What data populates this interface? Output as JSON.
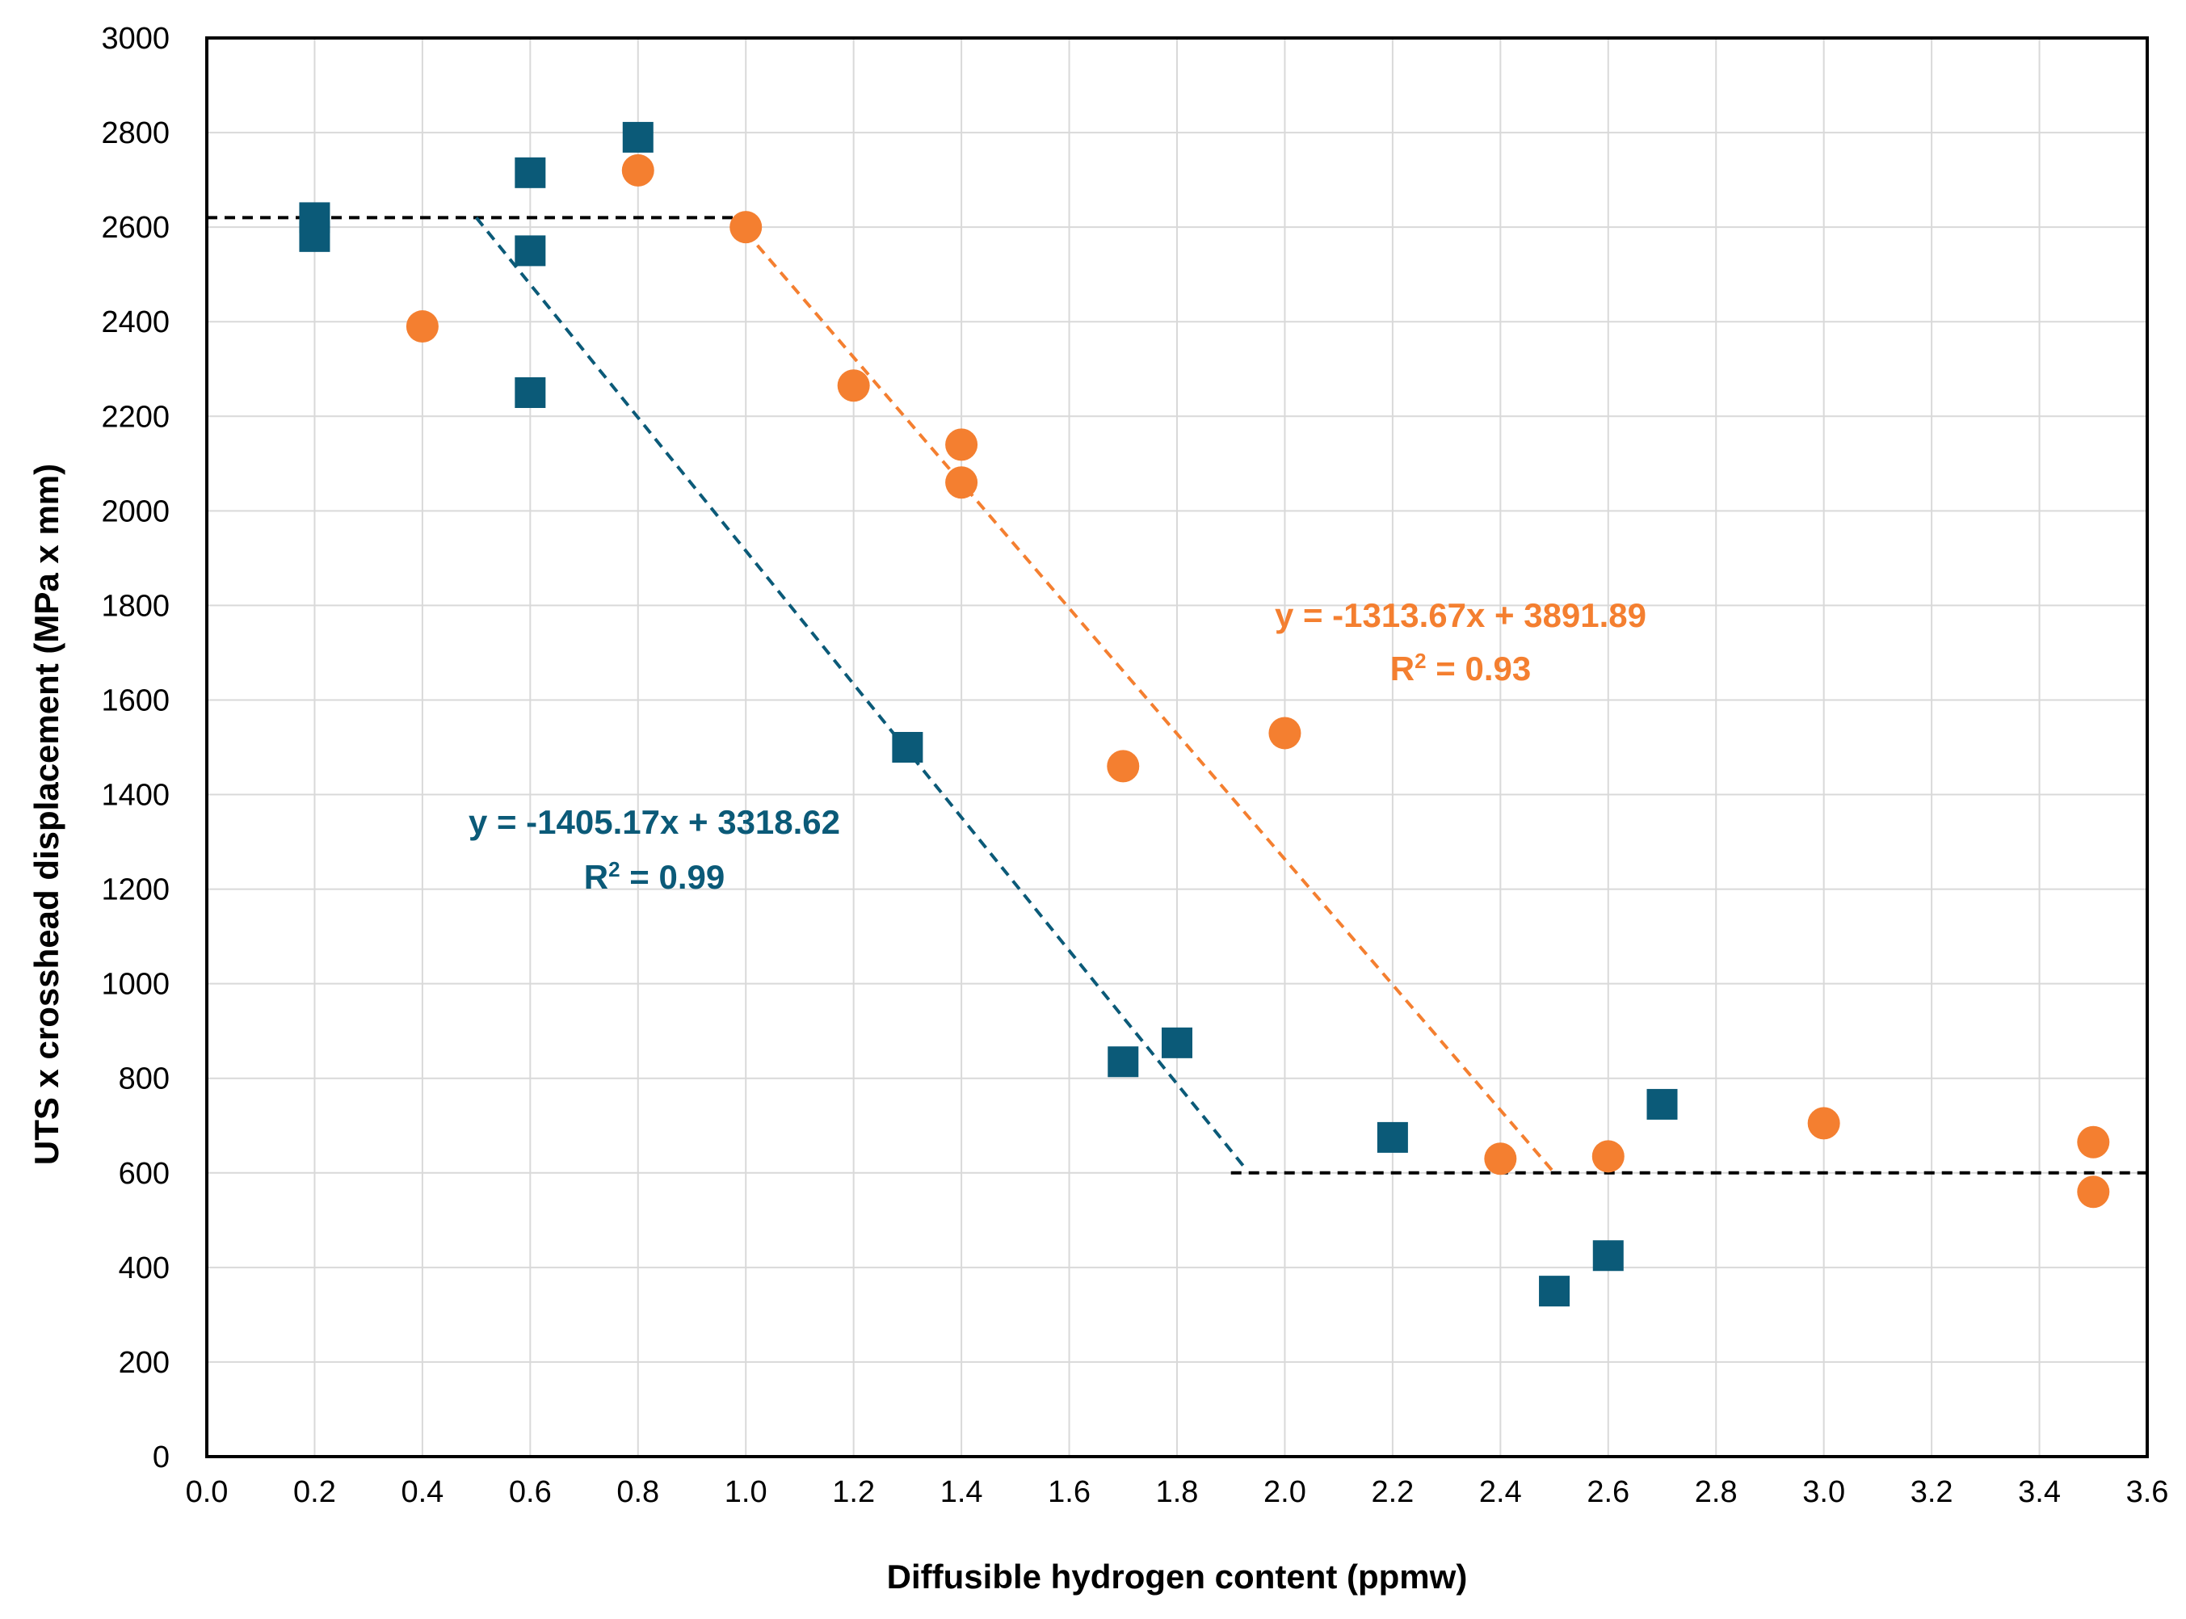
{
  "chart_data": {
    "type": "scatter",
    "title": "",
    "xlabel": "Diffusible hydrogen content (ppmw)",
    "ylabel": "UTS x crosshead displacement (MPa x mm)",
    "xlim": [
      0,
      3.6
    ],
    "ylim": [
      0,
      3000
    ],
    "x_ticks": [
      "0.0",
      "0.2",
      "0.4",
      "0.6",
      "0.8",
      "1.0",
      "1.2",
      "1.4",
      "1.6",
      "1.8",
      "2.0",
      "2.2",
      "2.4",
      "2.6",
      "2.8",
      "3.0",
      "3.2",
      "3.4",
      "3.6"
    ],
    "y_ticks": [
      "0",
      "200",
      "400",
      "600",
      "800",
      "1000",
      "1200",
      "1400",
      "1600",
      "1800",
      "2000",
      "2200",
      "2400",
      "2600",
      "2800",
      "3000"
    ],
    "grid": true,
    "series": [
      {
        "name": "squares",
        "marker": "square",
        "color": "#0b5a78",
        "points": [
          [
            0.2,
            2620
          ],
          [
            0.2,
            2580
          ],
          [
            0.6,
            2715
          ],
          [
            0.6,
            2550
          ],
          [
            0.6,
            2250
          ],
          [
            0.8,
            2790
          ],
          [
            1.3,
            1500
          ],
          [
            1.7,
            835
          ],
          [
            1.8,
            875
          ],
          [
            2.2,
            675
          ],
          [
            2.5,
            350
          ],
          [
            2.6,
            425
          ],
          [
            2.7,
            745
          ]
        ]
      },
      {
        "name": "circles",
        "marker": "circle",
        "color": "#f47f30",
        "points": [
          [
            0.4,
            2390
          ],
          [
            0.8,
            2720
          ],
          [
            1.0,
            2600
          ],
          [
            1.2,
            2265
          ],
          [
            1.4,
            2140
          ],
          [
            1.4,
            2060
          ],
          [
            1.7,
            1460
          ],
          [
            2.0,
            1530
          ],
          [
            2.4,
            630
          ],
          [
            2.6,
            635
          ],
          [
            3.0,
            705
          ],
          [
            3.5,
            665
          ],
          [
            3.5,
            560
          ]
        ]
      }
    ],
    "lines": [
      {
        "name": "upper-plateau",
        "color": "#000000",
        "x": [
          0,
          1.0
        ],
        "y": [
          2620,
          2620
        ]
      },
      {
        "name": "lower-plateau",
        "color": "#000000",
        "x": [
          1.9,
          3.6
        ],
        "y": [
          600,
          600
        ]
      },
      {
        "name": "blue-fit",
        "color": "#0b5a78",
        "x": [
          0.5,
          1.93
        ],
        "y": [
          2620,
          605
        ]
      },
      {
        "name": "orange-fit",
        "color": "#f47f30",
        "x": [
          1.0,
          2.5
        ],
        "y": [
          2590,
          600
        ]
      }
    ],
    "annotations": [
      {
        "series": "blue-fit",
        "equation": "y = -1405.17x + 3318.62",
        "r2_label": "R",
        "r2_sup": "2",
        "r2_value": " = 0.99",
        "color": "#0b5a78"
      },
      {
        "series": "orange-fit",
        "equation": "y = -1313.67x + 3891.89",
        "r2_label": "R",
        "r2_sup": "2",
        "r2_value": " = 0.93",
        "color": "#f47f30"
      }
    ]
  }
}
